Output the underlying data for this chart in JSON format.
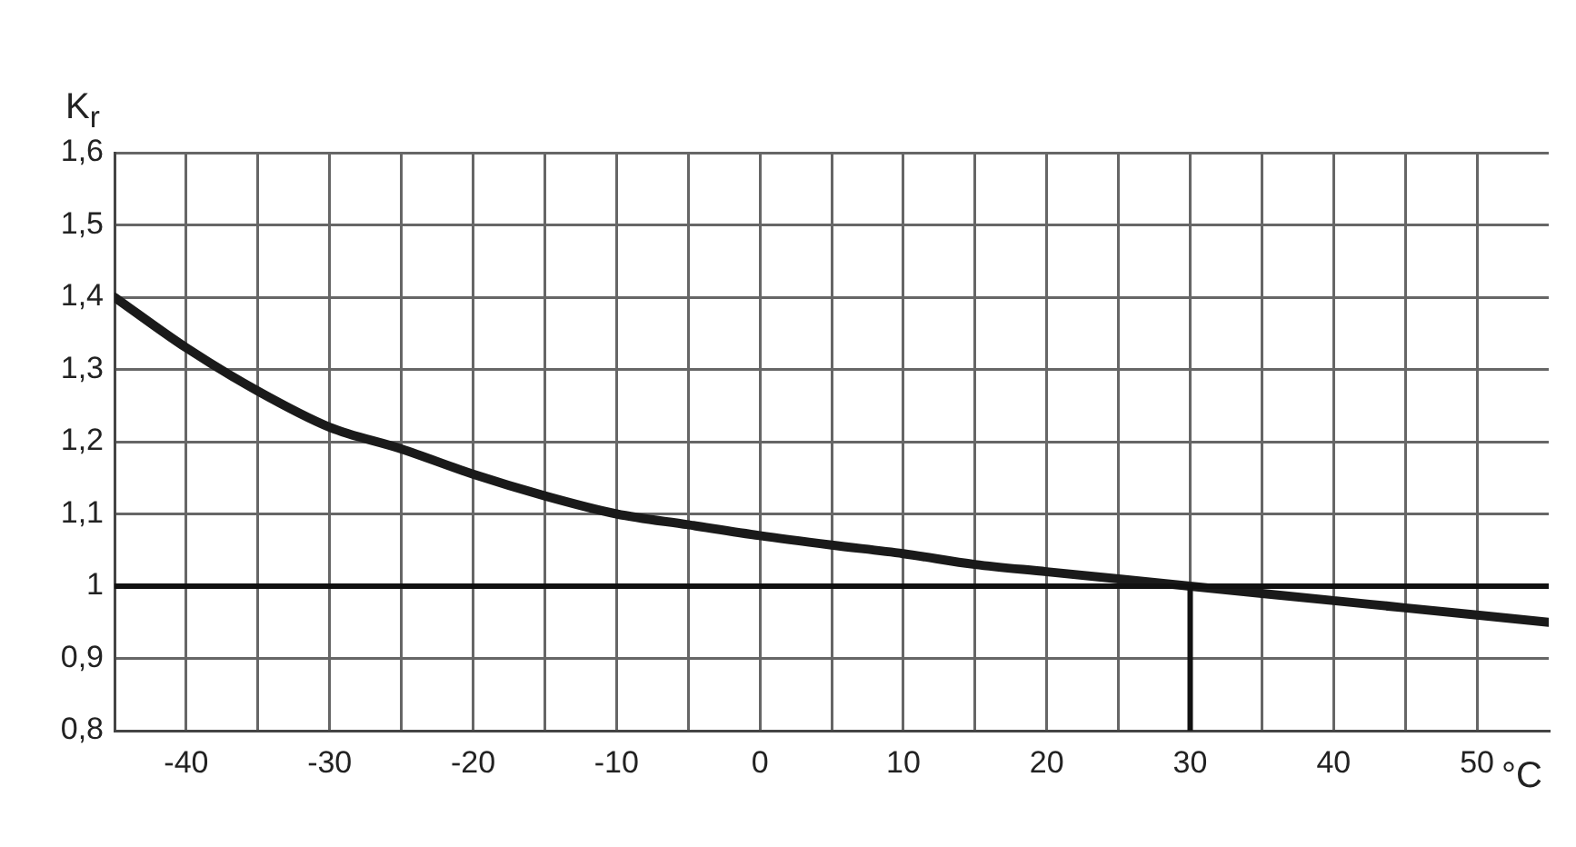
{
  "chart_data": {
    "type": "line",
    "xlabel": "°C",
    "ylabel": "K$_{r}$",
    "x": [
      -45,
      -40,
      -35,
      -30,
      -25,
      -20,
      -15,
      -10,
      -5,
      0,
      5,
      10,
      15,
      20,
      25,
      30,
      35,
      40,
      45,
      50,
      55
    ],
    "series": [
      {
        "color": "#1a1a1a",
        "values": [
          1.4,
          1.33,
          1.27,
          1.22,
          1.19,
          1.155,
          1.125,
          1.1,
          1.085,
          1.07,
          1.057,
          1.045,
          1.03,
          1.02,
          1.01,
          1.0,
          0.99,
          0.98,
          0.97,
          0.96,
          0.95
        ]
      }
    ],
    "xlim": [
      -45,
      55
    ],
    "xticks": [
      -40,
      {
        "value": -35,
        "label": null
      },
      -30,
      {
        "value": -25,
        "label": null
      },
      -20,
      {
        "value": -15,
        "label": null
      },
      -10,
      {
        "value": -5,
        "label": null
      },
      0,
      {
        "value": 5,
        "label": null
      },
      10,
      {
        "value": 15,
        "label": null
      },
      20,
      {
        "value": 25,
        "label": null
      },
      30,
      {
        "value": 35,
        "label": null
      },
      40,
      {
        "value": 45,
        "label": null
      },
      50
    ],
    "ylim": [
      0.8,
      1.6
    ],
    "yticks": [
      {
        "value": 0.8,
        "label": "0,8"
      },
      {
        "value": 0.9,
        "label": "0,9"
      },
      1,
      {
        "value": 1.1,
        "label": "1,1"
      },
      {
        "value": 1.2,
        "label": "1,2"
      },
      {
        "value": 1.3,
        "label": "1,3"
      },
      {
        "value": 1.4,
        "label": "1,4"
      },
      {
        "value": 1.5,
        "label": "1,5"
      },
      {
        "value": 1.6,
        "label": "1,6"
      }
    ],
    "ref_lines": [
      {
        "axis": "y",
        "value": 1,
        "color": "#111111"
      },
      {
        "axis": "x",
        "value": 30,
        "color": "#111111"
      }
    ],
    "grid": true,
    "legend": false,
    "marker": "none",
    "line_style": "solid"
  }
}
